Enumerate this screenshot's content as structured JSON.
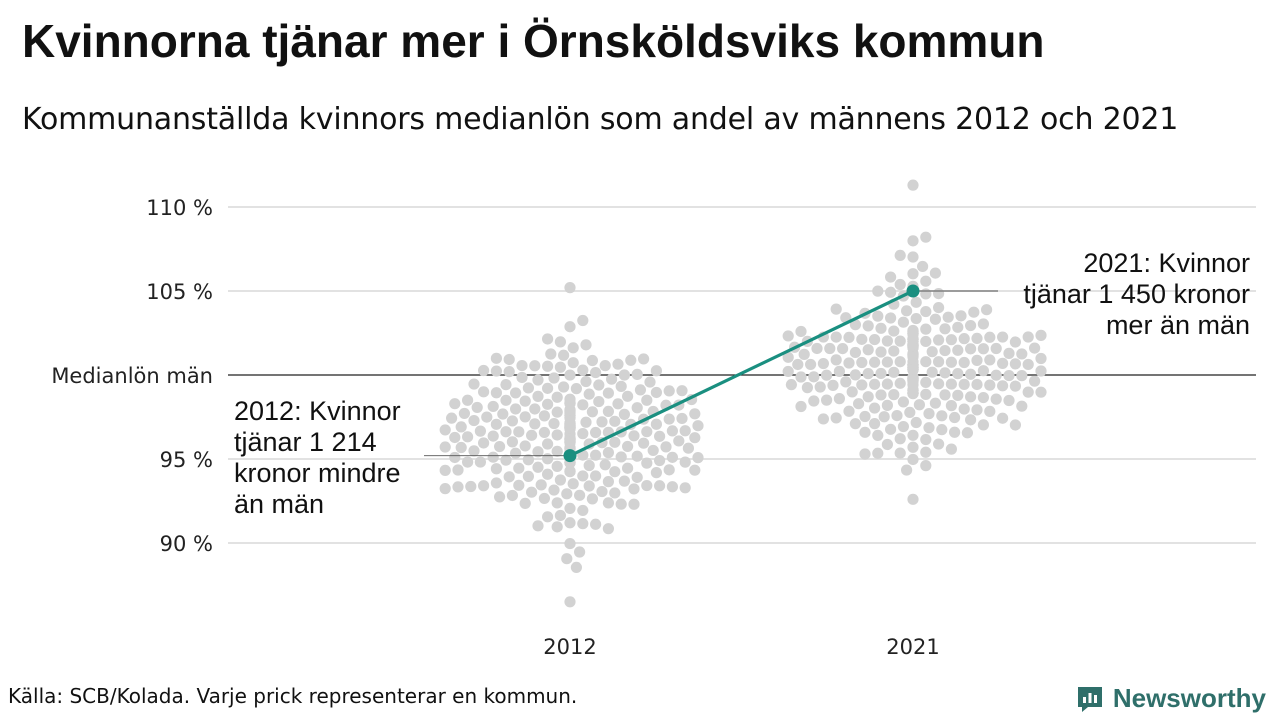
{
  "title": "Kvinnorna tjänar mer i Örnsköldsviks kommun",
  "subtitle": "Kommunanställda kvinnors medianlön som andel av männens 2012 och 2021",
  "source": "Källa: SCB/Kolada. Varje prick representerar en kommun.",
  "brand": {
    "name": "Newsworthy",
    "logo_icon": "newsworthy-logo-icon",
    "color": "#2f6f6a"
  },
  "colors": {
    "dots": "#d2d2d2",
    "highlight": "#1a8f80",
    "grid": "#e2e2e2",
    "reference": "#222222"
  },
  "annotations": {
    "y2012": [
      "2012: Kvinnor",
      "tjänar 1 214",
      "kronor mindre",
      "än män"
    ],
    "y2021": [
      "2021: Kvinnor",
      "tjänar 1 450 kronor",
      "mer än män"
    ]
  },
  "chart_data": {
    "type": "scatter",
    "subtype": "beeswarm",
    "categories": [
      "2012",
      "2021"
    ],
    "y_unit": "%",
    "yticks": [
      {
        "value": 90,
        "label": "90 %"
      },
      {
        "value": 95,
        "label": "95 %"
      },
      {
        "value": 100,
        "label": "Medianlön män"
      },
      {
        "value": 105,
        "label": "105 %"
      },
      {
        "value": 110,
        "label": "110 %"
      }
    ],
    "ylim": [
      86,
      112
    ],
    "grid": true,
    "reference_line": {
      "value": 100,
      "label": "Medianlön män"
    },
    "distributions": [
      {
        "category": "2012",
        "n": 290,
        "min": 86.5,
        "max": 105.2,
        "center": 96.5,
        "spread": 2.6
      },
      {
        "category": "2021",
        "n": 290,
        "min": 92.6,
        "max": 111.3,
        "center": 100.8,
        "spread": 2.8
      }
    ],
    "highlight": {
      "name": "Örnsköldsvik",
      "values": [
        {
          "category": "2012",
          "value": 95.2
        },
        {
          "category": "2021",
          "value": 105.0
        }
      ]
    }
  }
}
